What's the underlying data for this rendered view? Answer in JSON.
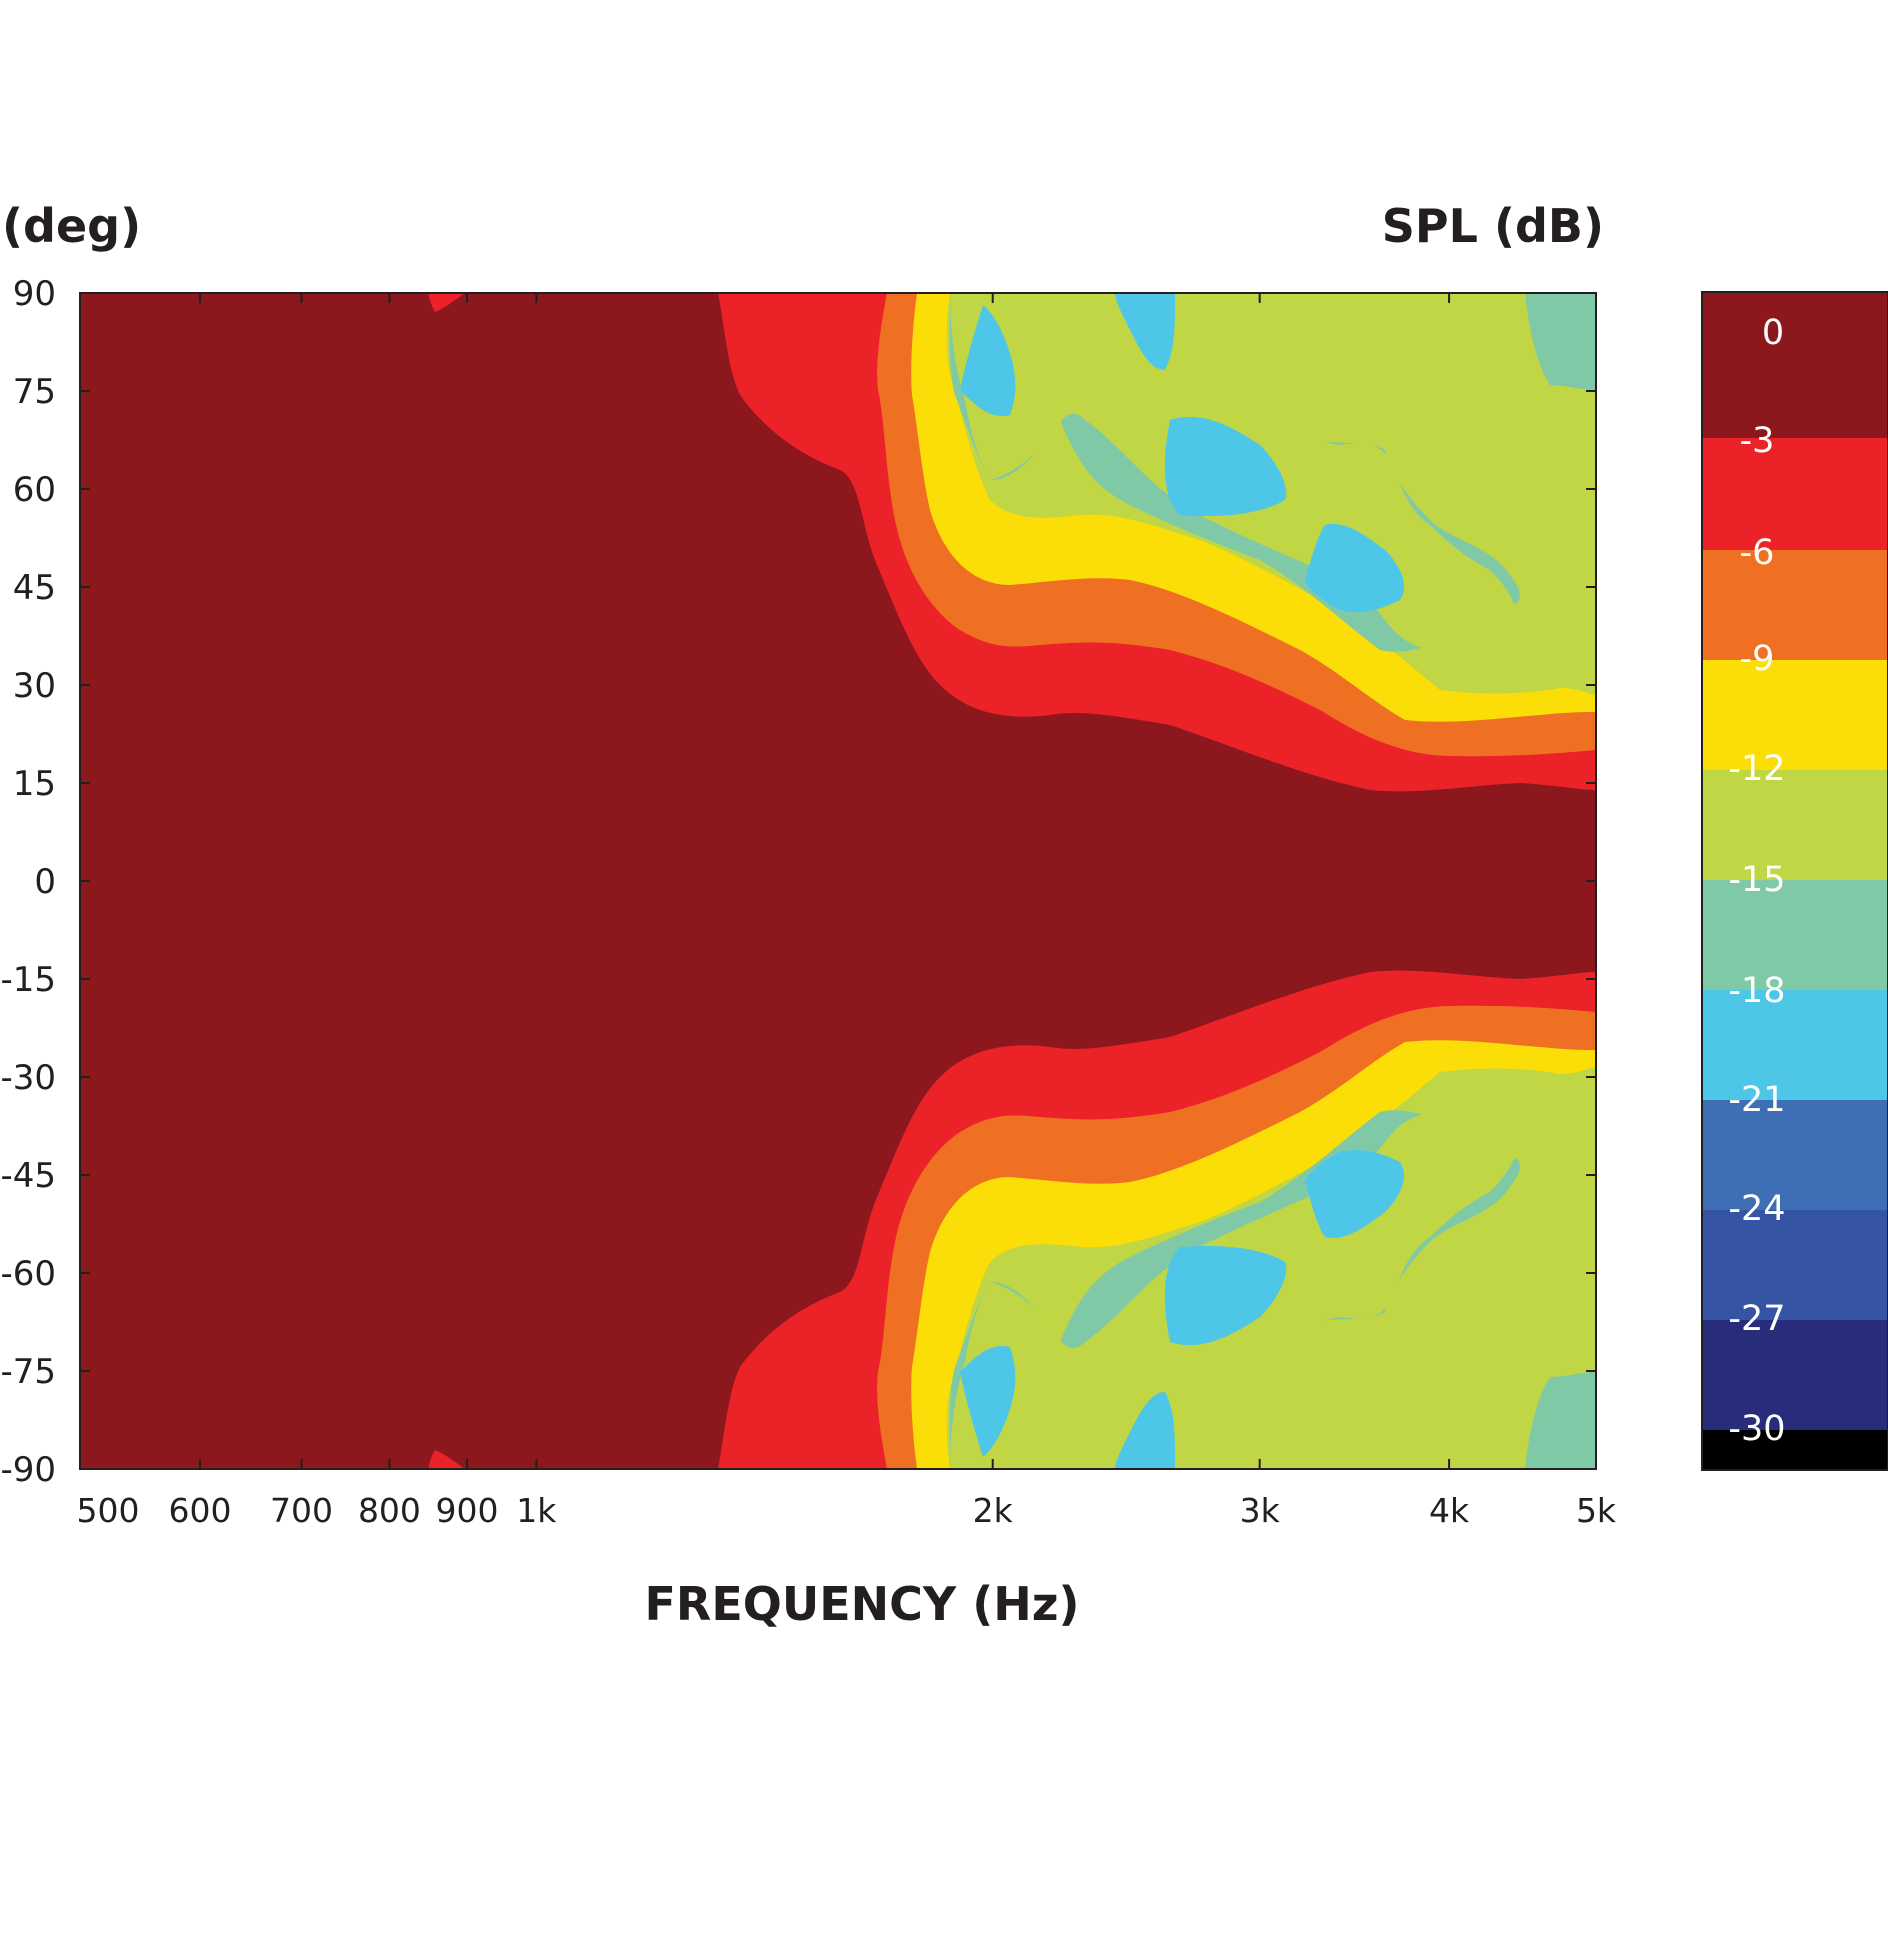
{
  "chart_data": {
    "type": "heatmap",
    "title": "",
    "xlabel": "FREQUENCY (Hz)",
    "ylabel": "(deg)",
    "colorbar_label": "SPL (dB)",
    "x_scale": "log",
    "xlim": [
      500,
      5000
    ],
    "ylim": [
      -90,
      90
    ],
    "x_tick_values": [
      500,
      600,
      700,
      800,
      900,
      1000,
      2000,
      3000,
      4000,
      5000
    ],
    "x_tick_labels": [
      "500",
      "600",
      "700",
      "800",
      "900",
      "1k",
      "2k",
      "3k",
      "4k",
      "5k"
    ],
    "y_ticks": [
      "90",
      "75",
      "60",
      "45",
      "30",
      "15",
      "0",
      "-15",
      "-30",
      "-45",
      "-60",
      "-75",
      "-90"
    ],
    "colorbar": {
      "labels": [
        "0",
        "-3",
        "-6",
        "-9",
        "-12",
        "-15",
        "-18",
        "-21",
        "-24",
        "-27",
        "-30"
      ],
      "colors": [
        "#8c181e",
        "#ec2229",
        "#f07023",
        "#fbdd08",
        "#c0d644",
        "#80c9a6",
        "#4dc6e8",
        "#3e6fb5",
        "#3654a4",
        "#272d7b",
        "#000000"
      ]
    },
    "contour_upper_half_0_to_90deg": {
      "note_key": "level_boundaries",
      "bands": [
        {
          "level_db": "-3",
          "points": [
            [
              1380,
              90
            ],
            [
              1420,
              75
            ],
            [
              1550,
              60
            ],
            [
              1660,
              45
            ],
            [
              1800,
              30
            ],
            [
              2000,
              22
            ],
            [
              2400,
              25
            ],
            [
              3000,
              20
            ],
            [
              3600,
              14
            ],
            [
              4200,
              15
            ],
            [
              5000,
              14
            ]
          ]
        },
        {
          "level_db": "-6",
          "points": [
            [
              1660,
              90
            ],
            [
              1700,
              75
            ],
            [
              1760,
              60
            ],
            [
              1820,
              45
            ],
            [
              1900,
              36
            ],
            [
              2400,
              37
            ],
            [
              3000,
              32
            ],
            [
              3600,
              22
            ],
            [
              4200,
              21
            ],
            [
              5000,
              20
            ]
          ]
        },
        {
          "level_db": "-9",
          "points": [
            [
              1720,
              90
            ],
            [
              1740,
              75
            ],
            [
              1790,
              60
            ],
            [
              1870,
              48
            ],
            [
              2100,
              46
            ],
            [
              2600,
              42
            ],
            [
              3200,
              30
            ],
            [
              3700,
              26
            ],
            [
              4400,
              25
            ],
            [
              5000,
              24
            ]
          ]
        },
        {
          "level_db": "-12",
          "points": [
            [
              1780,
              90
            ],
            [
              1800,
              75
            ],
            [
              1850,
              58
            ],
            [
              2000,
              55
            ],
            [
              2400,
              54
            ],
            [
              3000,
              43
            ],
            [
              3700,
              33
            ],
            [
              4400,
              28
            ],
            [
              5000,
              28
            ]
          ]
        },
        {
          "level_db": "-15",
          "points": [
            [
              1850,
              90
            ],
            [
              1900,
              75
            ],
            [
              2100,
              65
            ],
            [
              2500,
              55
            ],
            [
              3000,
              50
            ],
            [
              3800,
              40
            ],
            [
              4300,
              45
            ],
            [
              4800,
              75
            ],
            [
              5000,
              75
            ]
          ]
        },
        {
          "level_db": "-18",
          "points": [
            [
              1960,
              88
            ],
            [
              2450,
              82
            ],
            [
              2600,
              62
            ],
            [
              3100,
              50
            ],
            [
              3800,
              90
            ]
          ]
        }
      ],
      "symmetry": "mirror about 0 deg"
    }
  }
}
